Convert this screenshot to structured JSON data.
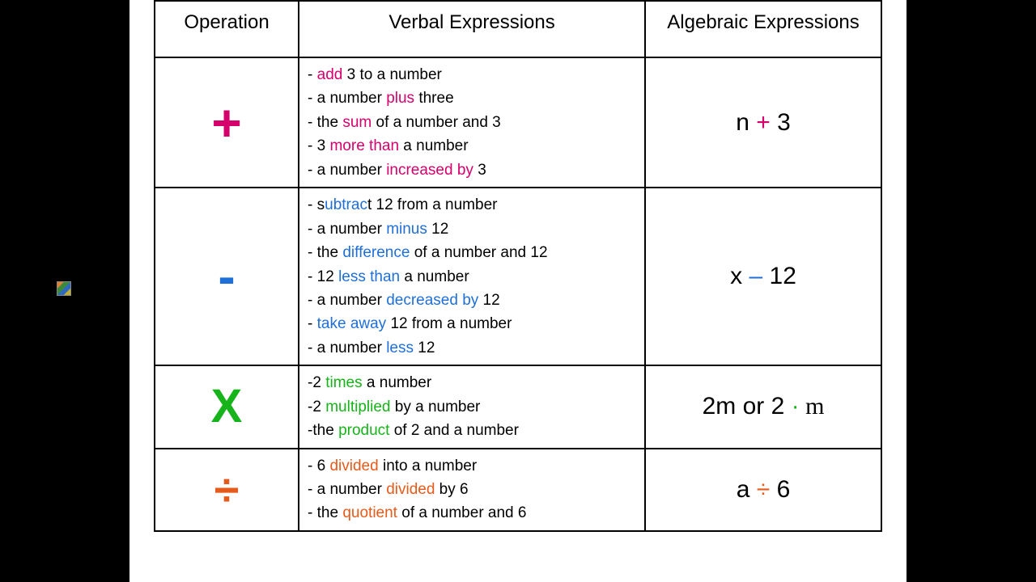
{
  "colors": {
    "add": "#d6006c",
    "subtract": "#1f6fd8",
    "multiply": "#17b31a",
    "divide": "#e65a1a",
    "text": "#000000",
    "bg": "#ffffff",
    "page_bg": "#000000",
    "border": "#000000"
  },
  "headers": {
    "operation": "Operation",
    "verbal": "Verbal Expressions",
    "algebraic": "Algebraic Expressions"
  },
  "rows": [
    {
      "key": "add",
      "symbol": "+",
      "symbol_color": "#d6006c",
      "symbol_size": 64,
      "verbal": [
        [
          {
            "t": "- "
          },
          {
            "t": "add",
            "c": "#d6006c"
          },
          {
            "t": " 3 to a number"
          }
        ],
        [
          {
            "t": "- a number "
          },
          {
            "t": "plus",
            "c": "#d6006c"
          },
          {
            "t": " three"
          }
        ],
        [
          {
            "t": "- the "
          },
          {
            "t": "sum",
            "c": "#d6006c"
          },
          {
            "t": " of a number and 3"
          }
        ],
        [
          {
            "t": "- 3 "
          },
          {
            "t": "more than",
            "c": "#d6006c"
          },
          {
            "t": " a number"
          }
        ],
        [
          {
            "t": "- a number "
          },
          {
            "t": "increased by",
            "c": "#d6006c"
          },
          {
            "t": " 3"
          }
        ]
      ],
      "algebraic": [
        {
          "t": "n "
        },
        {
          "t": "+",
          "c": "#d6006c"
        },
        {
          "t": " 3"
        }
      ]
    },
    {
      "key": "subtract",
      "symbol": "-",
      "symbol_color": "#1f6fd8",
      "symbol_size": 64,
      "verbal": [
        [
          {
            "t": "- s"
          },
          {
            "t": "ubtrac",
            "c": "#1f6fd8"
          },
          {
            "t": "t 12 from a number"
          }
        ],
        [
          {
            "t": "- a number "
          },
          {
            "t": "minus",
            "c": "#1f6fd8"
          },
          {
            "t": " 12"
          }
        ],
        [
          {
            "t": "- the "
          },
          {
            "t": "difference",
            "c": "#1f6fd8"
          },
          {
            "t": " of a number and 12"
          }
        ],
        [
          {
            "t": "- 12 "
          },
          {
            "t": "less than",
            "c": "#1f6fd8"
          },
          {
            "t": " a number"
          }
        ],
        [
          {
            "t": "- a number "
          },
          {
            "t": "decreased by",
            "c": "#1f6fd8"
          },
          {
            "t": " 12"
          }
        ],
        [
          {
            "t": "- "
          },
          {
            "t": "take away",
            "c": "#1f6fd8"
          },
          {
            "t": " 12 from a number"
          }
        ],
        [
          {
            "t": "- a number "
          },
          {
            "t": "less",
            "c": "#1f6fd8"
          },
          {
            "t": " 12"
          }
        ]
      ],
      "algebraic": [
        {
          "t": "x "
        },
        {
          "t": "–",
          "c": "#1f6fd8"
        },
        {
          "t": " 12"
        }
      ]
    },
    {
      "key": "multiply",
      "symbol": "X",
      "symbol_color": "#17b31a",
      "symbol_size": 58,
      "verbal": [
        [
          {
            "t": "-2 "
          },
          {
            "t": "times",
            "c": "#17b31a"
          },
          {
            "t": " a number"
          }
        ],
        [
          {
            "t": "-2 "
          },
          {
            "t": "multiplied",
            "c": "#17b31a"
          },
          {
            "t": " by a number"
          }
        ],
        [
          {
            "t": "-the "
          },
          {
            "t": "product",
            "c": "#17b31a"
          },
          {
            "t": " of 2 and a number"
          }
        ]
      ],
      "algebraic": [
        {
          "t": "2m or 2 "
        },
        {
          "t": "·",
          "c": "#17b31a"
        },
        {
          "t": " m",
          "serif": true
        }
      ]
    },
    {
      "key": "divide",
      "symbol": "÷",
      "symbol_color": "#e65a1a",
      "symbol_size": 56,
      "verbal": [
        [
          {
            "t": "- 6 "
          },
          {
            "t": "divided",
            "c": "#e65a1a"
          },
          {
            "t": " into a number"
          }
        ],
        [
          {
            "t": "- a number "
          },
          {
            "t": "divided",
            "c": "#e65a1a"
          },
          {
            "t": " by 6"
          }
        ],
        [
          {
            "t": "- the "
          },
          {
            "t": "quotient",
            "c": "#e65a1a"
          },
          {
            "t": " of a number and 6"
          }
        ]
      ],
      "algebraic": [
        {
          "t": "a "
        },
        {
          "t": "÷",
          "c": "#e65a1a"
        },
        {
          "t": " 6"
        }
      ]
    }
  ]
}
